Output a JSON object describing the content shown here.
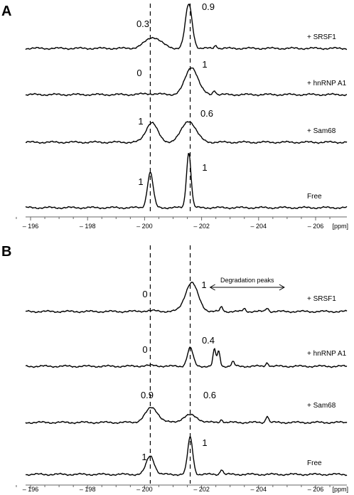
{
  "chart_data": [
    {
      "type": "line",
      "panel": "A",
      "x_unit": "[ppm]",
      "xlim": [
        -195.3,
        -206.8
      ],
      "x_reversed": true,
      "x_ticks": [
        -196,
        -198,
        -200,
        -202,
        -204,
        -206
      ],
      "x_tick_labels": [
        "– 196",
        "– 198",
        "– 200",
        "– 202",
        "– 204",
        "– 206"
      ],
      "reference_lines_ppm": [
        -200.2,
        -201.6
      ],
      "series": [
        {
          "name": "+ SRSF1",
          "peaks": [
            {
              "ppm": -200.3,
              "width": 0.28,
              "height": 0.25,
              "label": "0.3"
            },
            {
              "ppm": -201.55,
              "width": 0.12,
              "height": 1.0,
              "label": "0.9"
            }
          ],
          "noise": [
            {
              "ppm": -202.5,
              "height": 0.07
            }
          ]
        },
        {
          "name": "+ hnRNP A1",
          "peaks": [
            {
              "ppm": -200.2,
              "width": 0.3,
              "height": 0.02,
              "label": "0"
            },
            {
              "ppm": -201.65,
              "width": 0.22,
              "height": 0.62,
              "label": "1"
            }
          ],
          "noise": [
            {
              "ppm": -202.45,
              "height": 0.1
            }
          ]
        },
        {
          "name": "+ Sam68",
          "peaks": [
            {
              "ppm": -200.25,
              "width": 0.2,
              "height": 0.45,
              "label": "1"
            },
            {
              "ppm": -201.55,
              "width": 0.25,
              "height": 0.48,
              "label": "0.6"
            }
          ],
          "noise": []
        },
        {
          "name": "Free",
          "peaks": [
            {
              "ppm": -200.2,
              "width": 0.1,
              "height": 0.8,
              "label": "1"
            },
            {
              "ppm": -201.55,
              "width": 0.08,
              "height": 1.25,
              "label": "1"
            }
          ],
          "noise": []
        }
      ]
    },
    {
      "type": "line",
      "panel": "B",
      "x_unit": "[ppm]",
      "xlim": [
        -195.3,
        -206.8
      ],
      "x_reversed": true,
      "x_ticks": [
        -196,
        -198,
        -200,
        -202,
        -204,
        -206
      ],
      "x_tick_labels": [
        "– 196",
        "– 198",
        "– 200",
        "– 202",
        "– 204",
        "– 206"
      ],
      "reference_lines_ppm": [
        -200.2,
        -201.6
      ],
      "annotation": "Degradation peaks",
      "annotation_range_ppm": [
        -202.3,
        -204.9
      ],
      "series": [
        {
          "name": "+ SRSF1",
          "peaks": [
            {
              "ppm": -200.2,
              "width": 0.3,
              "height": 0.02,
              "label": "0"
            },
            {
              "ppm": -201.65,
              "width": 0.22,
              "height": 0.78,
              "label": "1"
            }
          ],
          "noise": [
            {
              "ppm": -202.7,
              "height": 0.12
            },
            {
              "ppm": -203.5,
              "height": 0.08
            },
            {
              "ppm": -204.3,
              "height": 0.1
            }
          ]
        },
        {
          "name": "+ hnRNP A1",
          "peaks": [
            {
              "ppm": -200.2,
              "width": 0.3,
              "height": 0.02,
              "label": "0"
            },
            {
              "ppm": -201.6,
              "width": 0.1,
              "height": 0.5,
              "label": "0.4"
            }
          ],
          "noise": [
            {
              "ppm": -202.45,
              "height": 0.45
            },
            {
              "ppm": -202.6,
              "height": 0.4
            },
            {
              "ppm": -203.1,
              "height": 0.12
            },
            {
              "ppm": -204.3,
              "height": 0.1
            }
          ]
        },
        {
          "name": "+ Sam68",
          "peaks": [
            {
              "ppm": -200.25,
              "width": 0.22,
              "height": 0.4,
              "label": "0.9"
            },
            {
              "ppm": -201.6,
              "width": 0.25,
              "height": 0.2,
              "label": "0.6"
            }
          ],
          "noise": [
            {
              "ppm": -202.7,
              "height": 0.08
            },
            {
              "ppm": -204.3,
              "height": 0.18
            }
          ]
        },
        {
          "name": "Free",
          "peaks": [
            {
              "ppm": -200.2,
              "width": 0.14,
              "height": 0.5,
              "label": "1"
            },
            {
              "ppm": -201.6,
              "width": 0.09,
              "height": 1.0,
              "label": "1"
            }
          ],
          "noise": [
            {
              "ppm": -202.7,
              "height": 0.14
            }
          ]
        }
      ]
    }
  ]
}
